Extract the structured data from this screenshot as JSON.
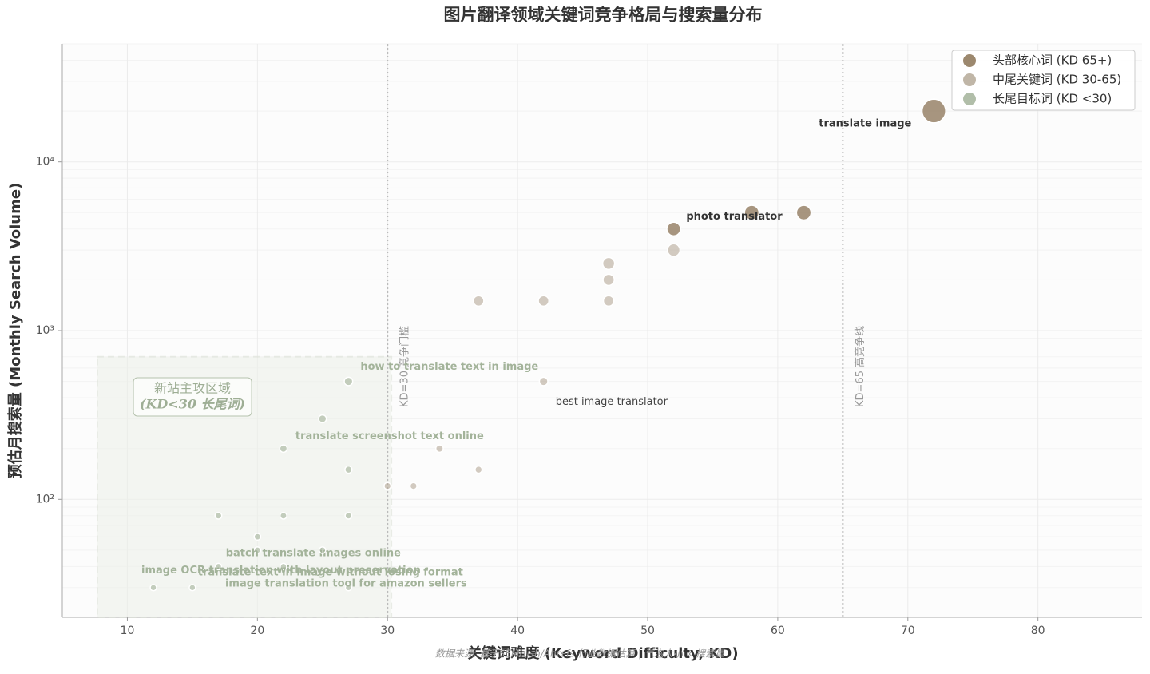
{
  "chart_data": {
    "type": "scatter",
    "title": "图片翻译领域关键词竞争格局与搜索量分布",
    "xlabel": "关键词难度 (Keyword Difficulty, KD)",
    "ylabel": "预估月搜索量 (Monthly Search Volume)",
    "footnote": "数据来源: 基于SEMrush/Ahrefs 行业数据估算 | 气泡大小 ∝ 搜索量",
    "xlim": [
      5,
      88
    ],
    "xticks": [
      10,
      20,
      30,
      40,
      50,
      60,
      70,
      80
    ],
    "ylim": [
      20,
      50000
    ],
    "log_y": true,
    "grid": true,
    "yticks": [
      {
        "value": 100,
        "label": "10²"
      },
      {
        "value": 1000,
        "label": "10³"
      },
      {
        "value": 10000,
        "label": "10⁴"
      }
    ],
    "legend": "upper right",
    "series": [
      {
        "name": "头部核心词 (KD 65+)",
        "color": "#8b7355",
        "x": [
          72,
          62,
          58,
          52
        ],
        "values": [
          20000,
          5000,
          5000,
          4000
        ],
        "labels": [
          "translate image",
          null,
          "photo translator",
          null
        ]
      },
      {
        "name": "中尾关键词 (KD 30-65)",
        "color": "#b5a998",
        "x": [
          52,
          47,
          47,
          47,
          42,
          37,
          42,
          34,
          37,
          32,
          30
        ],
        "values": [
          3000,
          2500,
          2000,
          1500,
          1500,
          1500,
          500,
          200,
          150,
          120,
          120
        ],
        "labels": [
          null,
          null,
          null,
          null,
          null,
          null,
          "best image translator",
          null,
          null,
          null,
          null
        ]
      },
      {
        "name": "长尾目标词 (KD <30)",
        "color": "#a3b39a",
        "x": [
          27,
          25,
          22,
          27,
          17,
          22,
          27,
          20,
          20,
          25,
          17,
          22,
          27,
          12,
          15
        ],
        "values": [
          500,
          300,
          200,
          150,
          80,
          80,
          80,
          60,
          50,
          50,
          40,
          40,
          30,
          30,
          30
        ],
        "labels": [
          "how to translate text in image",
          null,
          "translate screenshot text online",
          null,
          null,
          null,
          null,
          null,
          "batch translate images online",
          "translate text in image without losing format",
          null,
          "image OCR translation with layout preservation",
          "image translation tool for amazon sellers",
          null,
          null
        ]
      }
    ],
    "vlines": [
      {
        "x": 30,
        "label": "KD=30 竞争门槛"
      },
      {
        "x": 65,
        "label": "KD=65 高竞争线"
      }
    ],
    "region": {
      "xlim": [
        7.7,
        30.3
      ],
      "ylim": [
        20,
        700
      ],
      "label": [
        "新站主攻区域",
        "(KD<30 长尾词)"
      ]
    }
  }
}
